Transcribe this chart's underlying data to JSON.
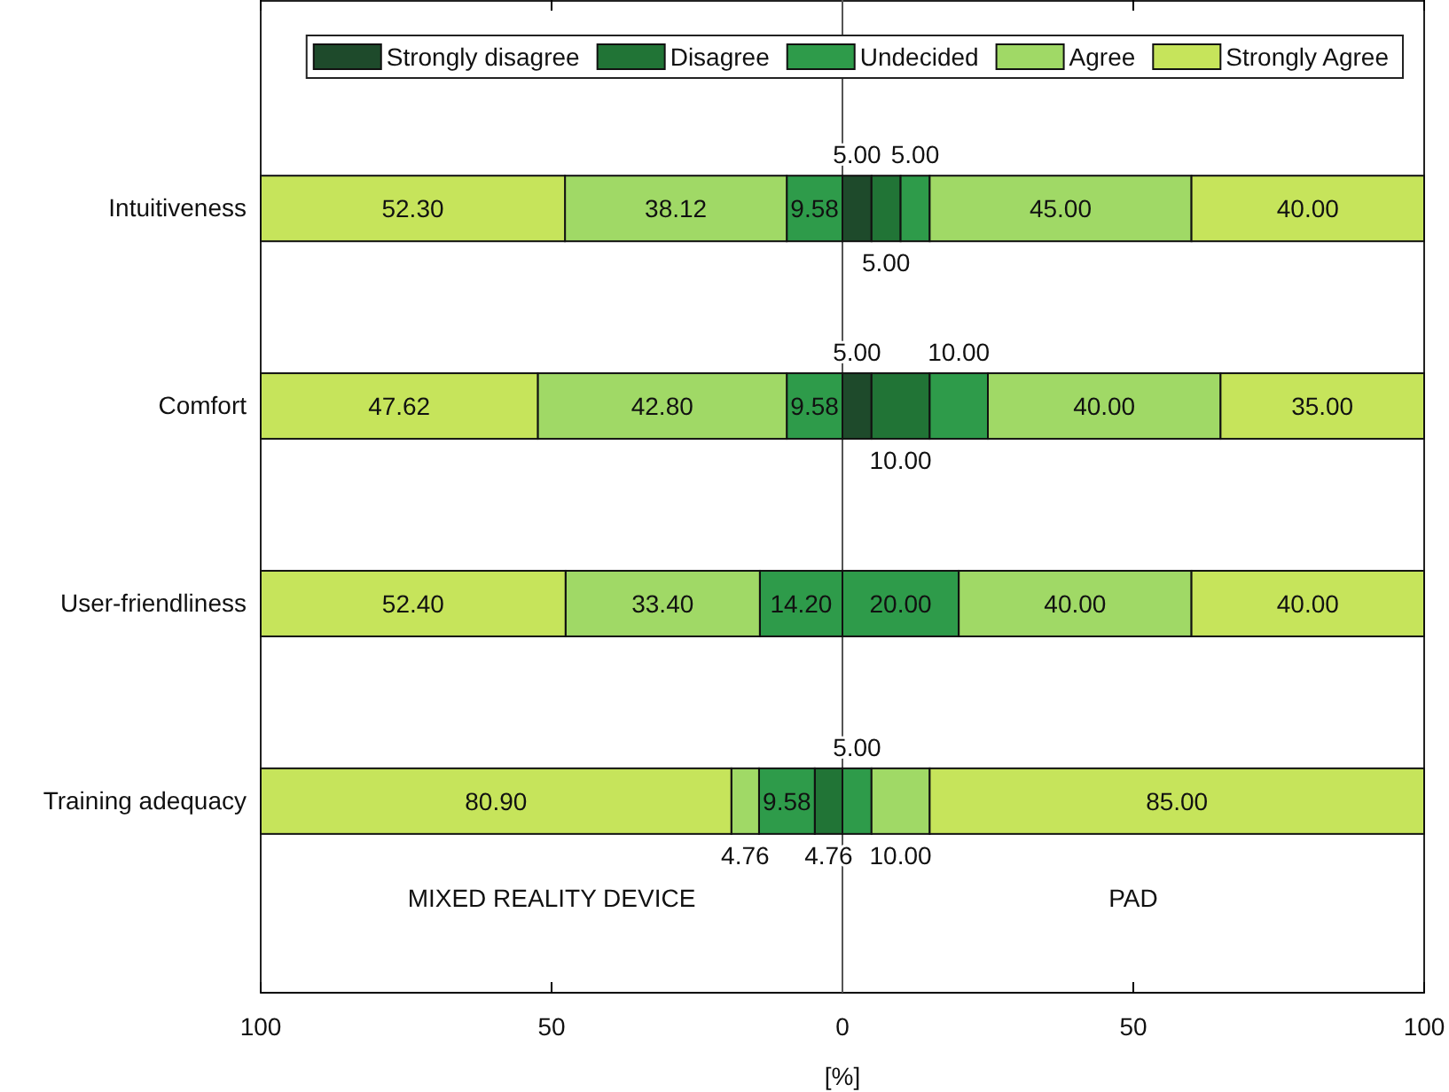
{
  "chart_data": {
    "type": "bar",
    "orientation": "horizontal",
    "xlabel": "[%]",
    "categories": [
      "Intuitiveness",
      "Comfort",
      "User-friendliness",
      "Training adequacy"
    ],
    "xlim": [
      -100,
      100
    ],
    "xticks": [
      {
        "value": -100,
        "label": "100"
      },
      {
        "value": -50,
        "label": "50"
      },
      0,
      50,
      100
    ],
    "legend": "top right",
    "grid": false,
    "ref_lines": [
      {
        "axis": "x",
        "value": 0
      }
    ],
    "annotations": [
      "MIXED REALITY DEVICE",
      "PAD"
    ],
    "series": [
      {
        "name": "Strongly disagree",
        "color": "#1e4a2b",
        "values": [
          null,
          null,
          null,
          null
        ],
        "base": [
          null,
          null,
          null,
          null
        ],
        "value_labels": [
          null,
          null,
          null,
          null
        ]
      },
      {
        "name": "Disagree",
        "color": "#217436",
        "values": [
          null,
          null,
          null,
          4.76
        ],
        "base": [
          null,
          null,
          null,
          -4.76
        ],
        "value_labels": [
          null,
          null,
          null,
          "4.76"
        ]
      },
      {
        "name": "Undecided",
        "color": "#2e9b4a",
        "values": [
          9.58,
          9.58,
          14.2,
          9.58
        ],
        "base": [
          -9.58,
          -9.58,
          -14.2,
          -14.34
        ],
        "value_labels": [
          "9.58",
          "9.58",
          "14.20",
          "9.58"
        ]
      },
      {
        "name": "Agree",
        "color": "#a0d966",
        "values": [
          38.12,
          42.8,
          33.4,
          4.76
        ],
        "base": [
          -47.7,
          -52.38,
          -47.6,
          -19.1
        ],
        "value_labels": [
          "38.12",
          "42.80",
          "33.40",
          "4.76"
        ]
      },
      {
        "name": "Strongly Agree",
        "color": "#c6e45b",
        "values": [
          52.3,
          47.62,
          52.4,
          80.9
        ],
        "base": [
          -100,
          -100,
          -100,
          -100
        ],
        "value_labels": [
          "52.30",
          "47.62",
          "52.40",
          "80.90"
        ]
      },
      {
        "color": "#1e4a2b",
        "values": [
          5,
          5,
          null,
          null
        ],
        "base": [
          0,
          0,
          null,
          null
        ],
        "value_labels": [
          "5.00",
          "5.00",
          null,
          null
        ]
      },
      {
        "color": "#217436",
        "values": [
          5,
          10,
          null,
          null
        ],
        "base": [
          5,
          5,
          null,
          null
        ],
        "value_labels": [
          "5.00",
          "10.00",
          null,
          null
        ]
      },
      {
        "color": "#2e9b4a",
        "values": [
          5,
          10,
          20,
          5
        ],
        "base": [
          10,
          15,
          0,
          0
        ],
        "value_labels": [
          "5.00",
          "10.00",
          "20.00",
          "5.00"
        ]
      },
      {
        "color": "#a0d966",
        "values": [
          45,
          40,
          40,
          10
        ],
        "base": [
          15,
          25,
          20,
          5
        ],
        "value_labels": [
          "45.00",
          "40.00",
          "40.00",
          "10.00"
        ]
      },
      {
        "color": "#c6e45b",
        "values": [
          40,
          35,
          40,
          85
        ],
        "base": [
          60,
          65,
          60,
          15
        ],
        "value_labels": [
          "40.00",
          "35.00",
          "40.00",
          "85.00"
        ]
      }
    ]
  }
}
